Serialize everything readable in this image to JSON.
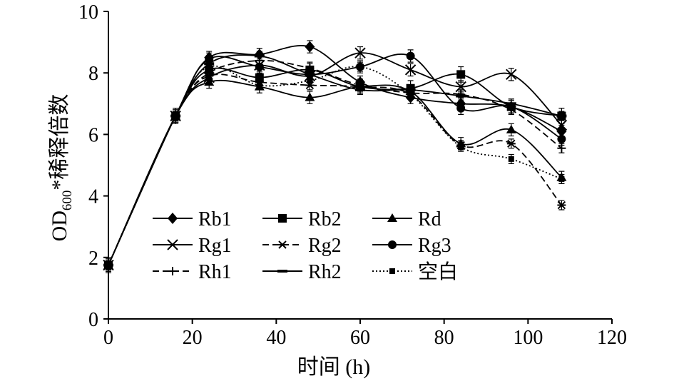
{
  "chart_data": {
    "type": "line",
    "xlabel": "时间 (h)",
    "ylabel": {
      "main": "OD",
      "sub": "600",
      "rest": "*稀释倍数"
    },
    "xlim": [
      0,
      120
    ],
    "ylim": [
      0,
      10
    ],
    "xticks": [
      "0",
      "20",
      "40",
      "60",
      "80",
      "100",
      "120"
    ],
    "yticks": [
      "0",
      "2",
      "4",
      "6",
      "8",
      "10"
    ],
    "grid": false,
    "legend_position": "bottom-left, inside plot, 3 columns",
    "x": [
      0,
      16,
      24,
      36,
      48,
      60,
      72,
      84,
      96,
      108
    ],
    "series": [
      {
        "name": "Rb1",
        "marker": "diamond",
        "dash": "solid",
        "error": 0.2,
        "values": [
          1.75,
          6.6,
          8.5,
          8.6,
          8.85,
          7.7,
          7.2,
          7.0,
          6.9,
          6.1
        ]
      },
      {
        "name": "Rb2",
        "marker": "square",
        "dash": "solid",
        "error": 0.25,
        "values": [
          1.75,
          6.6,
          8.1,
          7.85,
          8.1,
          7.55,
          7.5,
          7.95,
          6.9,
          6.6
        ]
      },
      {
        "name": "Rd",
        "marker": "triangle",
        "dash": "solid",
        "error": 0.2,
        "values": [
          1.75,
          6.6,
          7.7,
          7.55,
          7.2,
          7.55,
          7.4,
          5.7,
          6.15,
          4.6
        ]
      },
      {
        "name": "Rg1",
        "marker": "x",
        "dash": "solid",
        "error": 0.2,
        "values": [
          1.75,
          6.6,
          7.85,
          8.25,
          7.9,
          8.65,
          8.1,
          7.55,
          7.95,
          6.3
        ]
      },
      {
        "name": "Rg2",
        "marker": "star",
        "dash": "dashed",
        "error": 0.15,
        "values": [
          1.75,
          6.6,
          7.9,
          7.7,
          7.6,
          7.55,
          7.3,
          5.65,
          5.7,
          3.7
        ]
      },
      {
        "name": "Rg3",
        "marker": "circle",
        "dash": "solid",
        "error": 0.2,
        "values": [
          1.75,
          6.6,
          8.45,
          8.2,
          7.95,
          8.2,
          8.55,
          6.85,
          6.9,
          5.85
        ]
      },
      {
        "name": "Rh1",
        "marker": "plus",
        "dash": "dashed",
        "error": 0.15,
        "values": [
          1.75,
          6.6,
          8.0,
          8.4,
          8.15,
          7.6,
          7.35,
          7.3,
          6.8,
          5.55
        ]
      },
      {
        "name": "Rh2",
        "marker": "dash",
        "dash": "solid",
        "error": 0.15,
        "values": [
          1.75,
          6.6,
          8.3,
          8.55,
          7.95,
          7.45,
          7.45,
          7.25,
          7.0,
          6.6
        ]
      },
      {
        "name": "空白",
        "marker": "square-small",
        "dash": "dotted",
        "error": 0.15,
        "values": [
          1.75,
          6.6,
          8.2,
          7.6,
          7.75,
          8.2,
          7.3,
          5.6,
          5.2,
          4.55
        ]
      }
    ]
  }
}
